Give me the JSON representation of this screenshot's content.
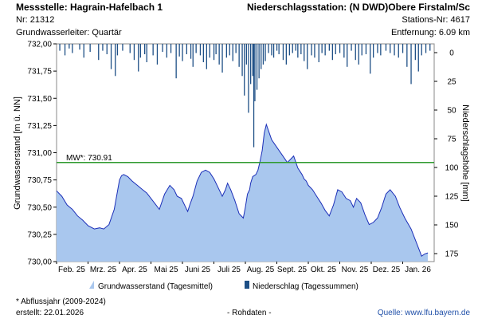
{
  "header": {
    "station_label": "Messstelle: Hagrain-Hafelbach 1",
    "nr_label": "Nr: 21312",
    "aquifer_label": "Grundwasserleiter: Quartär",
    "precip_station_label": "Niederschlagsstation: (N DWD)Obere Firstalm/Sc",
    "precip_nr_label": "Stations-Nr: 4617",
    "distance_label": "Entfernung: 6.09 km"
  },
  "footer": {
    "footnote": "* Abflussjahr (2009-2024)",
    "created": "erstellt:   22.01.2026",
    "rawdata": "- Rohdaten -",
    "source": "Quelle: www.lfu.bayern.de"
  },
  "colors": {
    "area_fill": "#a9c7ee",
    "area_line": "#1c2fb8",
    "precip_bar": "#1e4f86",
    "mean_line": "#2e9a2e"
  },
  "chart_data": {
    "type": "area",
    "title": "",
    "ylabel": "Grundwasserstand [m ü. NN]",
    "y2label": "Niederschlagshöhe [mm]",
    "ylim": [
      730.0,
      732.0
    ],
    "y2lim": [
      0,
      180
    ],
    "yticks": [
      "732,00",
      "731,75",
      "731,50",
      "731,25",
      "731,00",
      "730,75",
      "730,50",
      "730,25",
      "730,00"
    ],
    "y2ticks": [
      "0",
      "25",
      "50",
      "75",
      "100",
      "125",
      "150",
      "175"
    ],
    "xticks": [
      "Feb. 25",
      "Mrz. 25",
      "Apr. 25",
      "Mai 25",
      "Juni 25",
      "Juli 25",
      "Aug. 25",
      "Sept. 25",
      "Okt. 25",
      "Nov. 25",
      "Dez. 25",
      "Jan. 26"
    ],
    "xlim_days": [
      0,
      360
    ],
    "mean_line": {
      "label": "MW*: 730.91",
      "value": 730.91
    },
    "series": [
      {
        "name": "Grundwasserstand (Tagesmittel)",
        "type": "area",
        "x": [
          0,
          5,
          10,
          15,
          20,
          25,
          30,
          36,
          41,
          45,
          50,
          55,
          60,
          62,
          64,
          68,
          72,
          77,
          82,
          86,
          90,
          94,
          98,
          103,
          108,
          112,
          115,
          119,
          123,
          125,
          127,
          130,
          134,
          138,
          142,
          146,
          150,
          154,
          158,
          161,
          163,
          166,
          170,
          174,
          178,
          180,
          182,
          184,
          185,
          187,
          190,
          192,
          194,
          196,
          198,
          200,
          205,
          210,
          215,
          220,
          226,
          230,
          234,
          236,
          238,
          240,
          244,
          248,
          252,
          256,
          260,
          264,
          268,
          272,
          276,
          280,
          283,
          286,
          290,
          294,
          298,
          302,
          306,
          310,
          314,
          318,
          323,
          327,
          332,
          338,
          342,
          346,
          348,
          351,
          354
        ],
        "values": [
          730.65,
          730.6,
          730.52,
          730.48,
          730.42,
          730.38,
          730.33,
          730.3,
          730.31,
          730.3,
          730.34,
          730.48,
          730.75,
          730.79,
          730.8,
          730.78,
          730.74,
          730.7,
          730.66,
          730.63,
          730.58,
          730.53,
          730.48,
          730.62,
          730.7,
          730.66,
          730.6,
          730.58,
          730.5,
          730.46,
          730.52,
          730.6,
          730.74,
          730.82,
          730.84,
          730.82,
          730.76,
          730.68,
          730.6,
          730.66,
          730.72,
          730.66,
          730.56,
          730.44,
          730.4,
          730.5,
          730.62,
          730.66,
          730.72,
          730.78,
          730.8,
          730.84,
          730.92,
          731.02,
          731.18,
          731.26,
          731.12,
          731.05,
          730.98,
          730.91,
          730.97,
          730.86,
          730.8,
          730.76,
          730.74,
          730.7,
          730.66,
          730.6,
          730.54,
          730.47,
          730.42,
          730.52,
          730.66,
          730.64,
          730.58,
          730.56,
          730.5,
          730.58,
          730.54,
          730.43,
          730.34,
          730.36,
          730.4,
          730.5,
          730.62,
          730.66,
          730.6,
          730.5,
          730.4,
          730.3,
          730.2,
          730.1,
          730.05,
          730.07,
          730.08
        ]
      },
      {
        "name": "Niederschlag (Tagessummen)",
        "type": "bar",
        "days": [
          3,
          8,
          12,
          15,
          22,
          26,
          32,
          40,
          44,
          48,
          52,
          56,
          58,
          63,
          70,
          74,
          78,
          80,
          84,
          86,
          92,
          96,
          101,
          105,
          109,
          114,
          117,
          120,
          124,
          128,
          130,
          133,
          137,
          140,
          143,
          146,
          150,
          152,
          155,
          158,
          162,
          165,
          168,
          171,
          174,
          177,
          179,
          181,
          183,
          185,
          187,
          188,
          189,
          191,
          193,
          195,
          197,
          199,
          202,
          205,
          207,
          210,
          212,
          216,
          219,
          222,
          225,
          228,
          230,
          233,
          236,
          239,
          243,
          246,
          250,
          253,
          256,
          260,
          263,
          266,
          270,
          274,
          277,
          281,
          285,
          288,
          291,
          295,
          299,
          302,
          306,
          309,
          314,
          318,
          322,
          326,
          330,
          334,
          338,
          342,
          345,
          348,
          352,
          356
        ],
        "values": [
          6,
          10,
          4,
          8,
          5,
          12,
          7,
          14,
          6,
          9,
          22,
          28,
          10,
          6,
          8,
          14,
          24,
          12,
          9,
          16,
          10,
          18,
          7,
          12,
          8,
          30,
          11,
          15,
          9,
          13,
          20,
          8,
          10,
          16,
          22,
          12,
          14,
          9,
          18,
          25,
          12,
          10,
          15,
          8,
          20,
          28,
          45,
          18,
          60,
          35,
          28,
          90,
          50,
          40,
          30,
          22,
          18,
          15,
          8,
          10,
          12,
          6,
          9,
          14,
          18,
          10,
          8,
          6,
          12,
          9,
          15,
          22,
          10,
          12,
          16,
          8,
          10,
          6,
          14,
          9,
          8,
          12,
          20,
          6,
          14,
          18,
          10,
          9,
          26,
          12,
          8,
          10,
          6,
          8,
          10,
          12,
          8,
          20,
          35,
          14,
          24,
          10,
          8,
          6
        ]
      }
    ]
  }
}
